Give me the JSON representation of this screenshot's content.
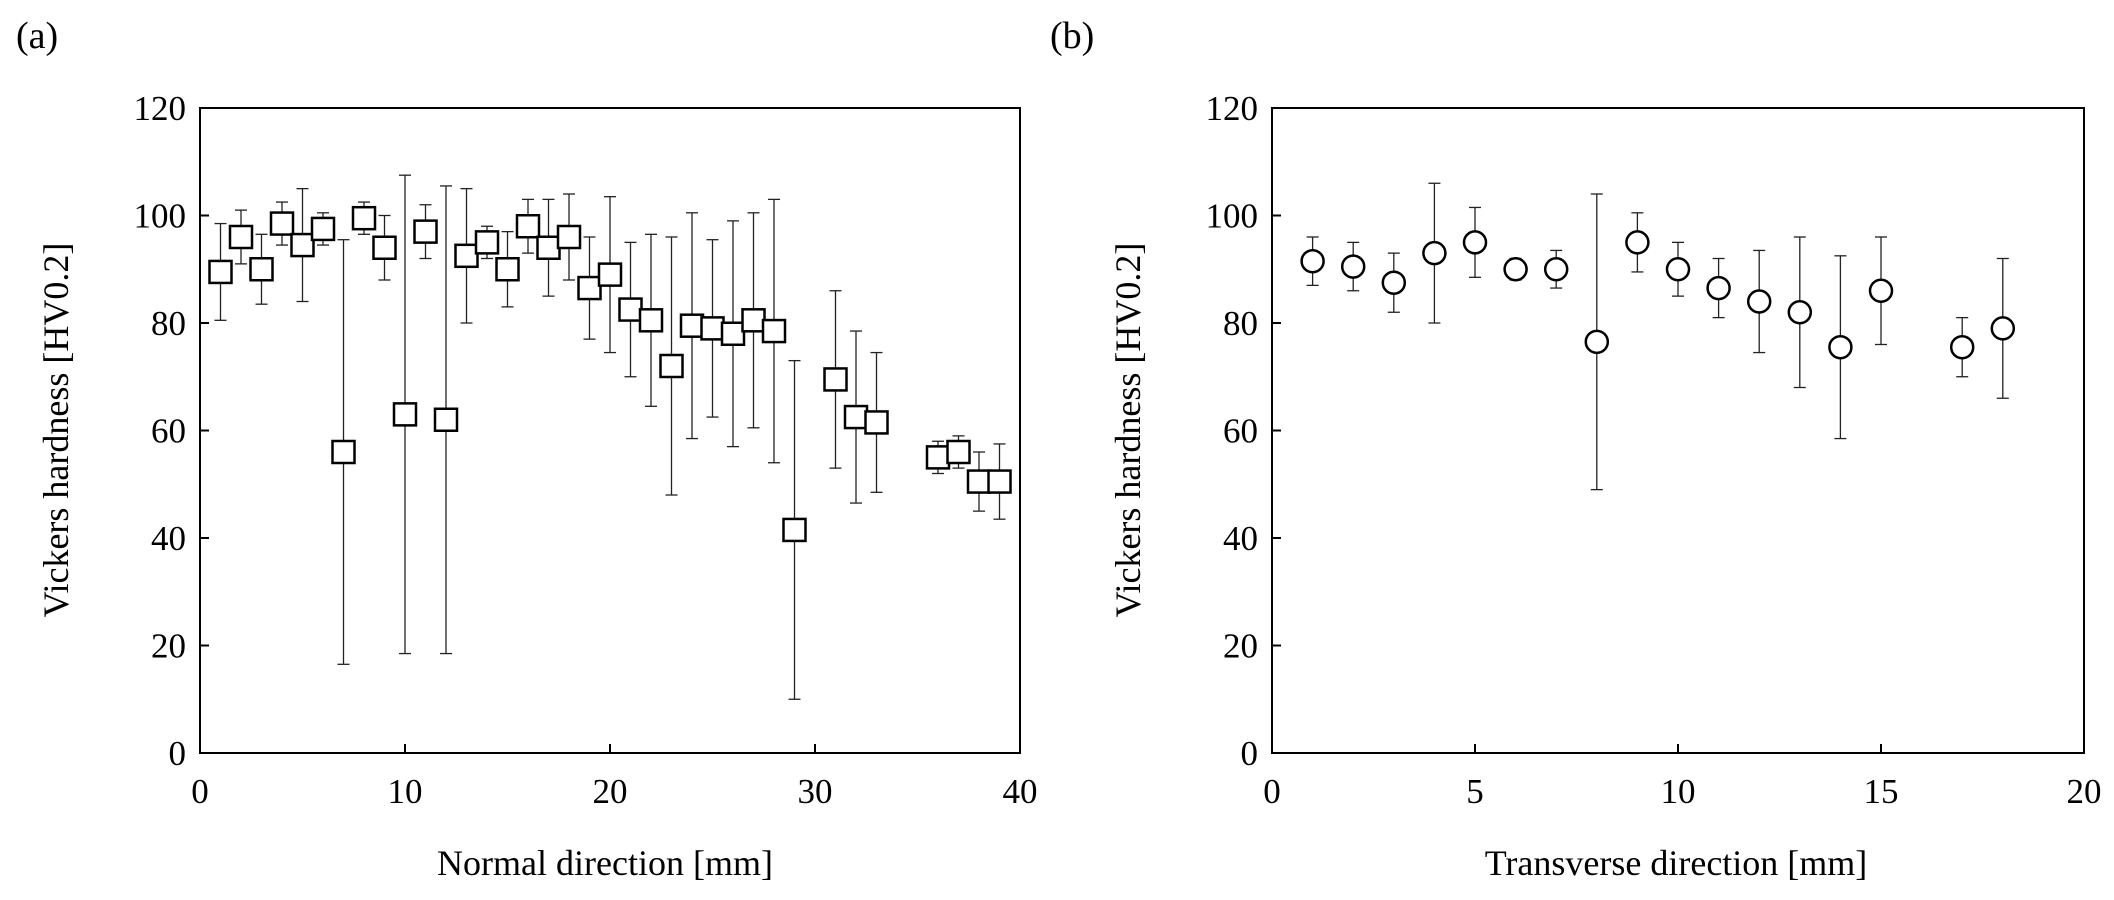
{
  "chart_data": [
    {
      "type": "scatter",
      "panel_label": "(a)",
      "marker": "square",
      "xlabel": "Normal direction [mm]",
      "ylabel": "Vickers hardness [HV0.2]",
      "xlim": [
        0,
        40
      ],
      "ylim": [
        0,
        120
      ],
      "xticks": [
        "0",
        "10",
        "20",
        "30",
        "40"
      ],
      "yticks": [
        "0",
        "20",
        "40",
        "60",
        "80",
        "100",
        "120"
      ],
      "grid": false,
      "points": [
        {
          "x": 1,
          "y": 89.5,
          "err": 9
        },
        {
          "x": 2,
          "y": 96,
          "err": 5
        },
        {
          "x": 3,
          "y": 90,
          "err": 6.5
        },
        {
          "x": 4,
          "y": 98.5,
          "err": 4
        },
        {
          "x": 5,
          "y": 94.5,
          "err": 10.5
        },
        {
          "x": 6,
          "y": 97.5,
          "err": 3
        },
        {
          "x": 7,
          "y": 56,
          "err": 39.5
        },
        {
          "x": 8,
          "y": 99.5,
          "err": 3
        },
        {
          "x": 9,
          "y": 94,
          "err": 6
        },
        {
          "x": 10,
          "y": 63,
          "err": 44.5
        },
        {
          "x": 11,
          "y": 97,
          "err": 5
        },
        {
          "x": 12,
          "y": 62,
          "err": 43.5
        },
        {
          "x": 13,
          "y": 92.5,
          "err": 12.5
        },
        {
          "x": 14,
          "y": 95,
          "err": 3
        },
        {
          "x": 15,
          "y": 90,
          "err": 7
        },
        {
          "x": 16,
          "y": 98,
          "err": 5
        },
        {
          "x": 17,
          "y": 94,
          "err": 9
        },
        {
          "x": 18,
          "y": 96,
          "err": 8
        },
        {
          "x": 19,
          "y": 86.5,
          "err": 9.5
        },
        {
          "x": 20,
          "y": 89,
          "err": 14.5
        },
        {
          "x": 21,
          "y": 82.5,
          "err": 12.5
        },
        {
          "x": 22,
          "y": 80.5,
          "err": 16
        },
        {
          "x": 23,
          "y": 72,
          "err": 24
        },
        {
          "x": 24,
          "y": 79.5,
          "err": 21
        },
        {
          "x": 25,
          "y": 79,
          "err": 16.5
        },
        {
          "x": 26,
          "y": 78,
          "err": 21
        },
        {
          "x": 27,
          "y": 80.5,
          "err": 20
        },
        {
          "x": 28,
          "y": 78.5,
          "err": 24.5
        },
        {
          "x": 29,
          "y": 41.5,
          "err": 31.5
        },
        {
          "x": 31,
          "y": 69.5,
          "err": 16.5
        },
        {
          "x": 32,
          "y": 62.5,
          "err": 16
        },
        {
          "x": 33,
          "y": 61.5,
          "err": 13
        },
        {
          "x": 36,
          "y": 55,
          "err": 3
        },
        {
          "x": 37,
          "y": 56,
          "err": 3
        },
        {
          "x": 38,
          "y": 50.5,
          "err": 5.5
        },
        {
          "x": 39,
          "y": 50.5,
          "err": 7
        }
      ]
    },
    {
      "type": "scatter",
      "panel_label": "(b)",
      "marker": "circle",
      "xlabel": "Transverse direction [mm]",
      "ylabel": "Vickers hardness [HV0.2]",
      "xlim": [
        0,
        20
      ],
      "ylim": [
        0,
        120
      ],
      "xticks": [
        "0",
        "5",
        "10",
        "15",
        "20"
      ],
      "yticks": [
        "0",
        "20",
        "40",
        "60",
        "80",
        "100",
        "120"
      ],
      "grid": false,
      "points": [
        {
          "x": 1,
          "y": 91.5,
          "err": 4.5
        },
        {
          "x": 2,
          "y": 90.5,
          "err": 4.5
        },
        {
          "x": 3,
          "y": 87.5,
          "err": 5.5
        },
        {
          "x": 4,
          "y": 93,
          "err": 13
        },
        {
          "x": 5,
          "y": 95,
          "err": 6.5
        },
        {
          "x": 6,
          "y": 90,
          "err": 2
        },
        {
          "x": 7,
          "y": 90,
          "err": 3.5
        },
        {
          "x": 8,
          "y": 76.5,
          "err": 27.5
        },
        {
          "x": 9,
          "y": 95,
          "err": 5.5
        },
        {
          "x": 10,
          "y": 90,
          "err": 5
        },
        {
          "x": 11,
          "y": 86.5,
          "err": 5.5
        },
        {
          "x": 12,
          "y": 84,
          "err": 9.5
        },
        {
          "x": 13,
          "y": 82,
          "err": 14
        },
        {
          "x": 14,
          "y": 75.5,
          "err": 17
        },
        {
          "x": 15,
          "y": 86,
          "err": 10
        },
        {
          "x": 17,
          "y": 75.5,
          "err": 5.5
        },
        {
          "x": 18,
          "y": 79,
          "err": 13
        }
      ]
    }
  ]
}
